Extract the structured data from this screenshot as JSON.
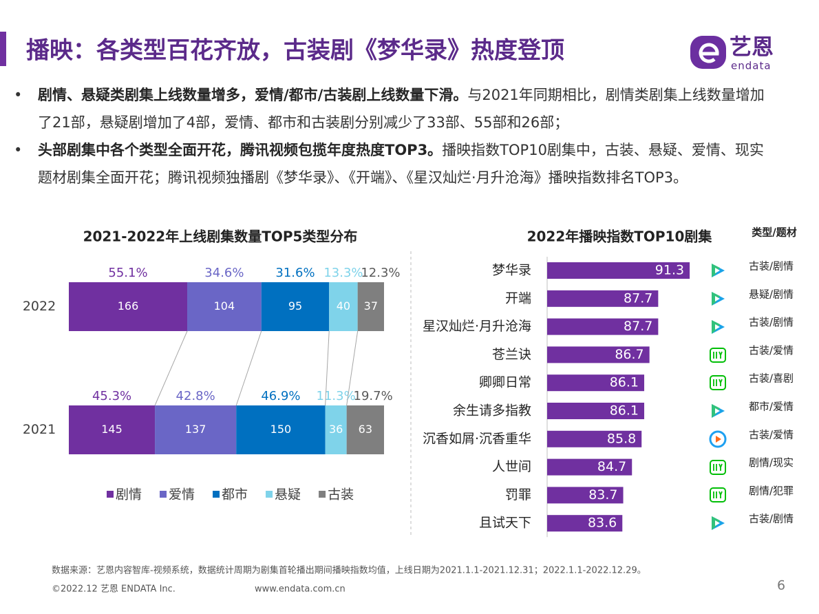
{
  "header": {
    "title": "播映：各类型百花齐放，古装剧《梦华录》热度登顶",
    "logo": "艺恩",
    "logo_sub": "endata"
  },
  "bullets": [
    {
      "bold": "剧情、悬疑类剧集上线数量增多，爱情/都市/古装剧上线数量下滑。",
      "text": "与2021年同期相比，剧情类剧集上线数量增加了21部，悬疑剧增加了4部，爱情、都市和古装剧分别减少了33部、55部和26部；"
    },
    {
      "bold": "头部剧集中各个类型全面开花，腾讯视频包揽年度热度TOP3。",
      "text": "播映指数TOP10剧集中，古装、悬疑、爱情、现实题材剧集全面开花；腾讯视频独播剧《梦华录》、《开端》、《星汉灿烂·月升沧海》播映指数排名TOP3。"
    }
  ],
  "chart_data": [
    {
      "type": "bar",
      "orientation": "horizontal",
      "stacked": "percent",
      "title": "2021-2022年上线剧集数量TOP5类型分布",
      "categories": [
        "2022",
        "2021"
      ],
      "legend": "bottom",
      "series": [
        {
          "name": "剧情",
          "color": "#7030a0",
          "values": [
            166,
            145
          ],
          "share_labels": [
            "55.1%",
            "45.3%"
          ]
        },
        {
          "name": "爱情",
          "color": "#6a66c6",
          "values": [
            104,
            137
          ],
          "share_labels": [
            "34.6%",
            "42.8%"
          ]
        },
        {
          "name": "都市",
          "color": "#0070c0",
          "values": [
            95,
            150
          ],
          "share_labels": [
            "31.6%",
            "46.9%"
          ]
        },
        {
          "name": "悬疑",
          "color": "#7fd3ea",
          "values": [
            40,
            36
          ],
          "share_labels": [
            "13.3%",
            "11.3%"
          ]
        },
        {
          "name": "古装",
          "color": "#7f7f7f",
          "values": [
            37,
            63
          ],
          "share_labels": [
            "12.3%",
            "19.7%"
          ]
        }
      ]
    },
    {
      "type": "bar",
      "orientation": "horizontal",
      "title": "2022年播映指数TOP10剧集",
      "color": "#7030a0",
      "categories": [
        "梦华录",
        "开端",
        "星汉灿烂·月升沧海",
        "苍兰诀",
        "卿卿日常",
        "余生请多指教",
        "沉香如屑·沉香重华",
        "人世间",
        "罚罪",
        "且试天下"
      ],
      "values": [
        91.3,
        87.7,
        87.7,
        86.7,
        86.1,
        86.1,
        85.8,
        84.7,
        83.7,
        83.6
      ],
      "xlim": [
        75,
        92
      ],
      "column_title": "类型/题材",
      "genres": [
        "古装/剧情",
        "悬疑/剧情",
        "古装/剧情",
        "古装/爱情",
        "古装/喜剧",
        "都市/爱情",
        "古装/爱情",
        "剧情/现实",
        "剧情/犯罪",
        "古装/剧情"
      ]
    }
  ],
  "footer": {
    "source": "数据来源：艺恩内容智库-视频系统，数据统计周期为剧集首轮播出期间播映指数均值，上线日期为2021.1.1-2021.12.31；2022.1.1-2022.12.29。",
    "copyright": "©2022.12 艺恩 ENDATA Inc.",
    "url": "www.endata.com.cn",
    "page": 6
  }
}
